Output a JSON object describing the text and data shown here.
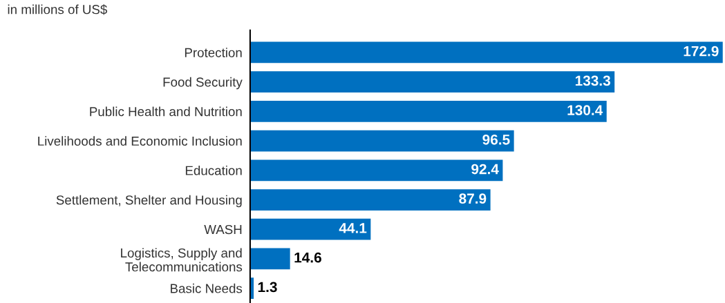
{
  "chart_data": {
    "type": "bar",
    "orientation": "horizontal",
    "subtitle": "in millions of US$",
    "categories": [
      "Protection",
      "Food Security",
      "Public Health and Nutrition",
      "Livelihoods and Economic Inclusion",
      "Education",
      "Settlement, Shelter and Housing",
      "WASH",
      "Logistics, Supply and\nTelecommunications",
      "Basic Needs"
    ],
    "values": [
      172.9,
      133.3,
      130.4,
      96.5,
      92.4,
      87.9,
      44.1,
      14.6,
      1.3
    ],
    "color": "#0070c0",
    "data_labels": true,
    "grid": false,
    "legend": false
  }
}
